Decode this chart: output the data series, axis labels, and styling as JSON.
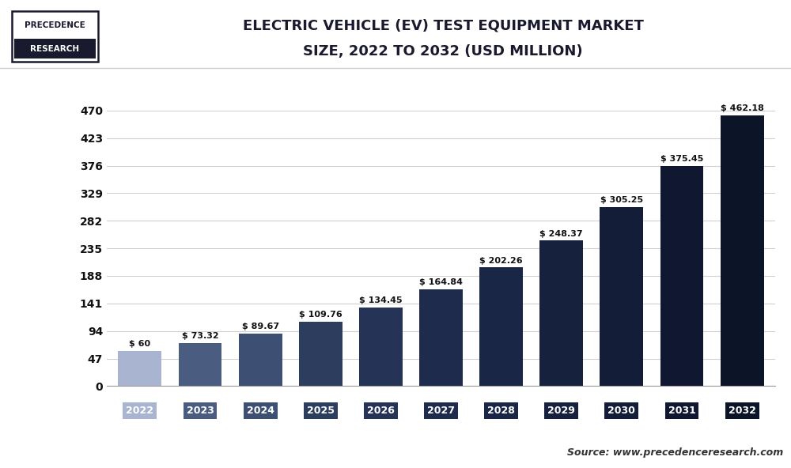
{
  "years": [
    "2022",
    "2023",
    "2024",
    "2025",
    "2026",
    "2027",
    "2028",
    "2029",
    "2030",
    "2031",
    "2032"
  ],
  "values": [
    60,
    73.32,
    89.67,
    109.76,
    134.45,
    164.84,
    202.26,
    248.37,
    305.25,
    375.45,
    462.18
  ],
  "labels": [
    "$ 60",
    "$ 73.32",
    "$ 89.67",
    "$ 109.76",
    "$ 134.45",
    "$ 164.84",
    "$ 202.26",
    "$ 248.37",
    "$ 305.25",
    "$ 375.45",
    "$ 462.18"
  ],
  "bar_colors": [
    "#a8b4d0",
    "#4a5d80",
    "#3d4f72",
    "#2d3d5e",
    "#253356",
    "#1e2b4d",
    "#1a2645",
    "#16213d",
    "#131d38",
    "#0f1830",
    "#0c1428"
  ],
  "yticks": [
    0,
    47,
    94,
    141,
    188,
    235,
    282,
    329,
    376,
    423,
    470
  ],
  "title_line1": "ELECTRIC VEHICLE (EV) TEST EQUIPMENT MARKET",
  "title_line2": "SIZE, 2022 TO 2032 (USD MILLION)",
  "bg_color": "#ffffff",
  "plot_bg_color": "#ffffff",
  "grid_color": "#d0d0d0",
  "source_text": "Source: www.precedenceresearch.com",
  "tick_label_color": "#111111",
  "bar_label_color": "#111111",
  "title_color": "#1a1a2e",
  "xtick_bg_colors": [
    "#a8b4d0",
    "#4a5d80",
    "#3d4f72",
    "#2d3d5e",
    "#253356",
    "#1e2b4d",
    "#1a2645",
    "#16213d",
    "#131d38",
    "#0f1830",
    "#0c1428"
  ]
}
